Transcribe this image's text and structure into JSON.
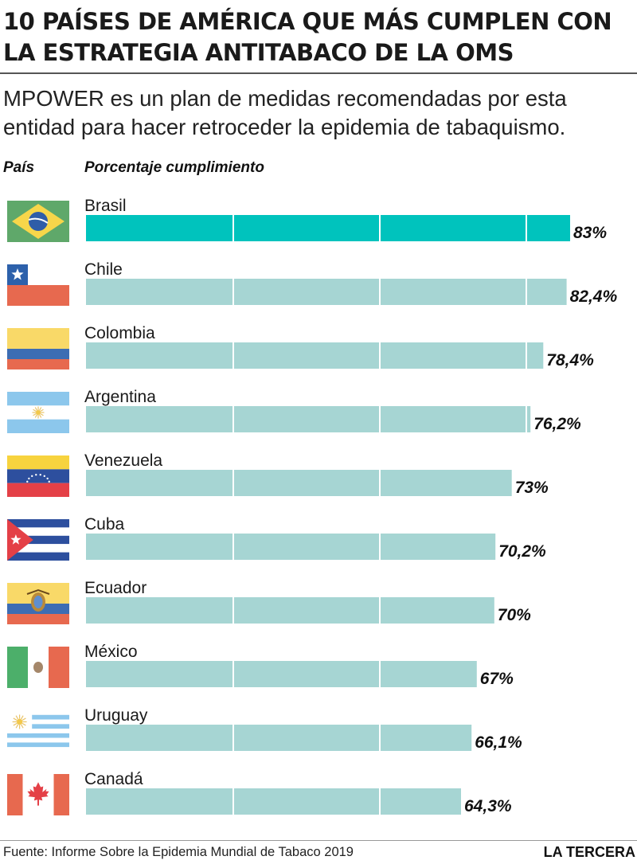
{
  "header": {
    "title": "10 PAÍSES DE AMÉRICA QUE MÁS CUMPLEN CON LA ESTRATEGIA ANTITABACO DE LA OMS",
    "subtitle": "MPOWER es un plan de medidas recomendadas por esta entidad para hacer retroceder la epidemia de tabaquismo."
  },
  "columns": {
    "country": "País",
    "percent": "Porcentaje cumplimiento"
  },
  "footer": {
    "source": "Fuente: Informe  Sobre la Epidemia Mundial de Tabaco 2019",
    "brand": "LA TERCERA"
  },
  "colors": {
    "highlight_bar": "#00c3bd",
    "bar": "#a6d5d3",
    "divider": "#ffffff"
  },
  "chart_data": {
    "type": "bar",
    "orientation": "horizontal",
    "categories": [
      "Brasil",
      "Chile",
      "Colombia",
      "Argentina",
      "Venezuela",
      "Cuba",
      "Ecuador",
      "México",
      "Uruguay",
      "Canadá"
    ],
    "values": [
      83,
      82.4,
      78.4,
      76.2,
      73,
      70.2,
      70,
      67,
      66.1,
      64.3
    ],
    "value_labels": [
      "83%",
      "82,4%",
      "78,4%",
      "76,2%",
      "73%",
      "70,2%",
      "70%",
      "67%",
      "66,1%",
      "64,3%"
    ],
    "flags": [
      "brazil-flag-icon",
      "chile-flag-icon",
      "colombia-flag-icon",
      "argentina-flag-icon",
      "venezuela-flag-icon",
      "cuba-flag-icon",
      "ecuador-flag-icon",
      "mexico-flag-icon",
      "uruguay-flag-icon",
      "canada-flag-icon"
    ],
    "highlighted": "Brasil",
    "xlim": [
      0,
      83
    ],
    "grid": false,
    "legend": "none"
  }
}
